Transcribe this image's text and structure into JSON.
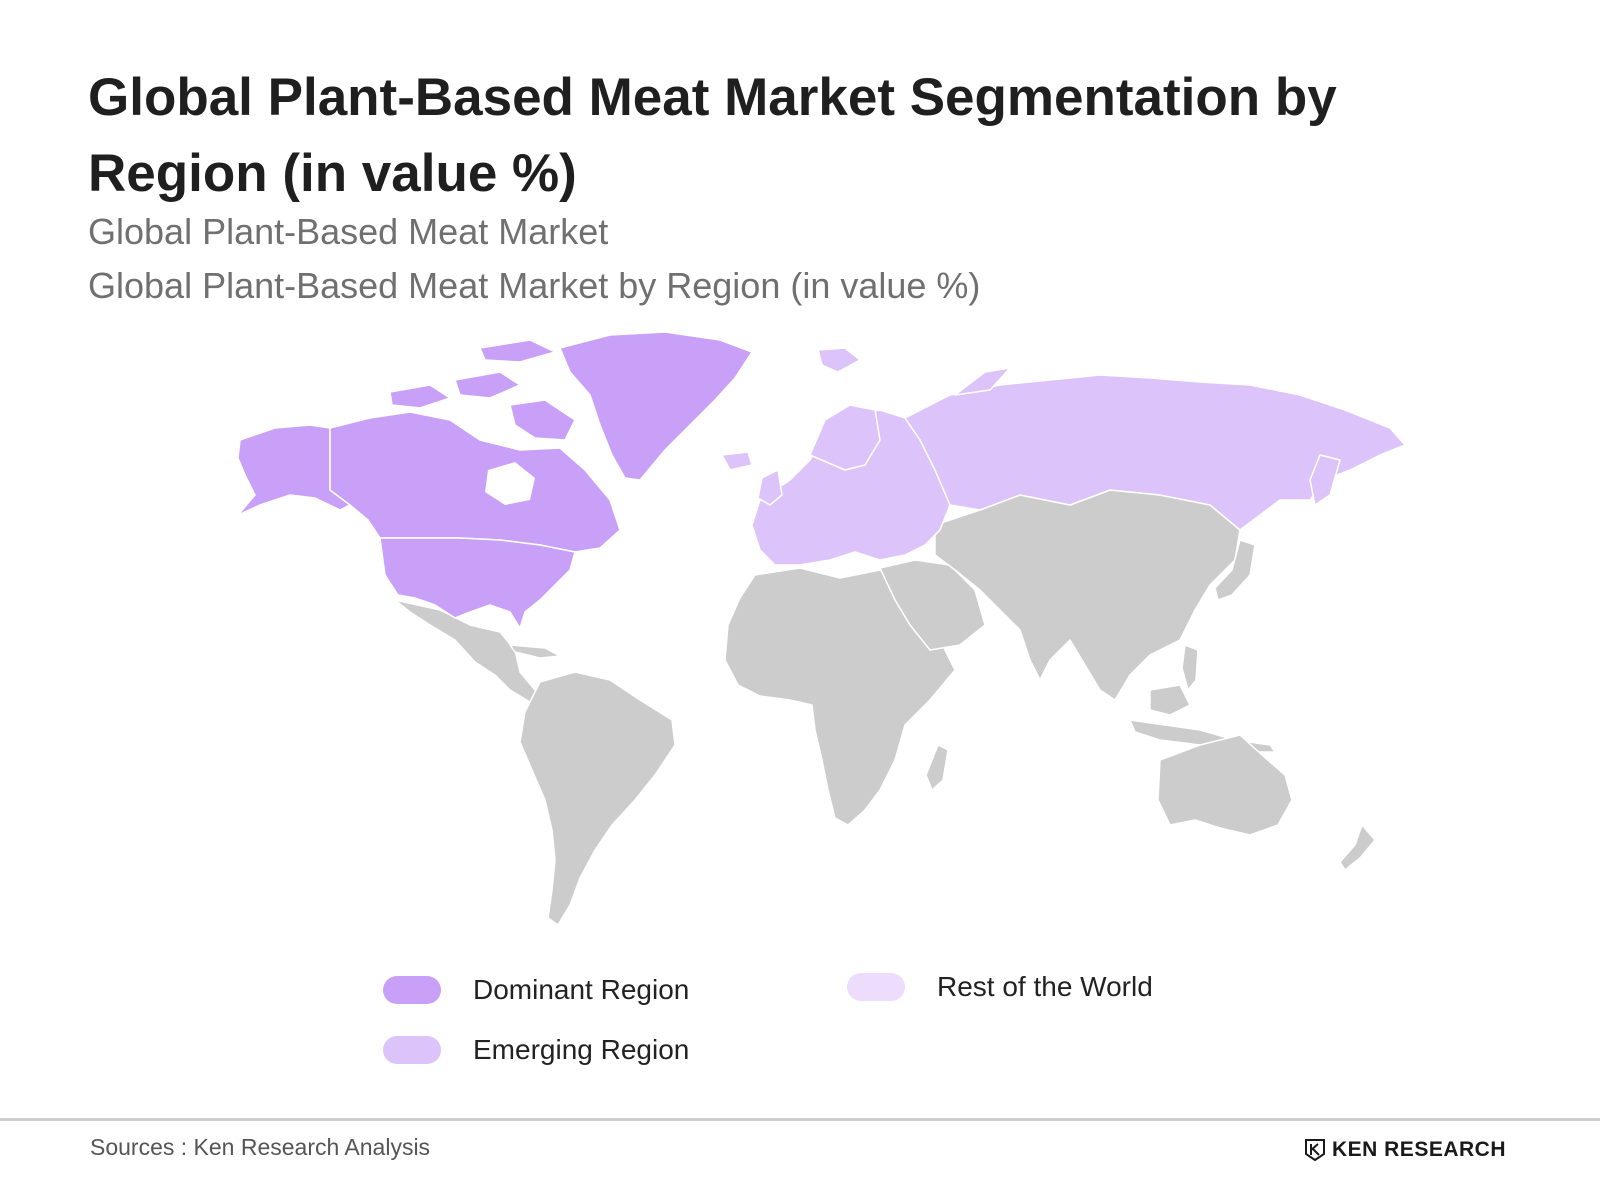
{
  "title": "Global Plant-Based Meat Market Segmentation by Region (in value %)",
  "subtitle_1": "Global Plant-Based Meat Market",
  "subtitle_2": "Global Plant-Based Meat Market by Region (in value %)",
  "colors": {
    "dominant": "#c9a0f7",
    "emerging": "#dcc4fb",
    "rest": "#eedcfd",
    "neutral_land": "#cccccc",
    "border": "#ffffff"
  },
  "map": {
    "regions": [
      {
        "name": "North America",
        "category": "dominant"
      },
      {
        "name": "Greenland",
        "category": "dominant"
      },
      {
        "name": "Europe",
        "category": "emerging"
      },
      {
        "name": "Russia",
        "category": "emerging"
      }
    ]
  },
  "legend": {
    "dominant": "Dominant Region",
    "emerging": "Emerging Region",
    "rest": "Rest of the World"
  },
  "source": "Sources : Ken Research Analysis",
  "logo_text": "KEN RESEARCH"
}
